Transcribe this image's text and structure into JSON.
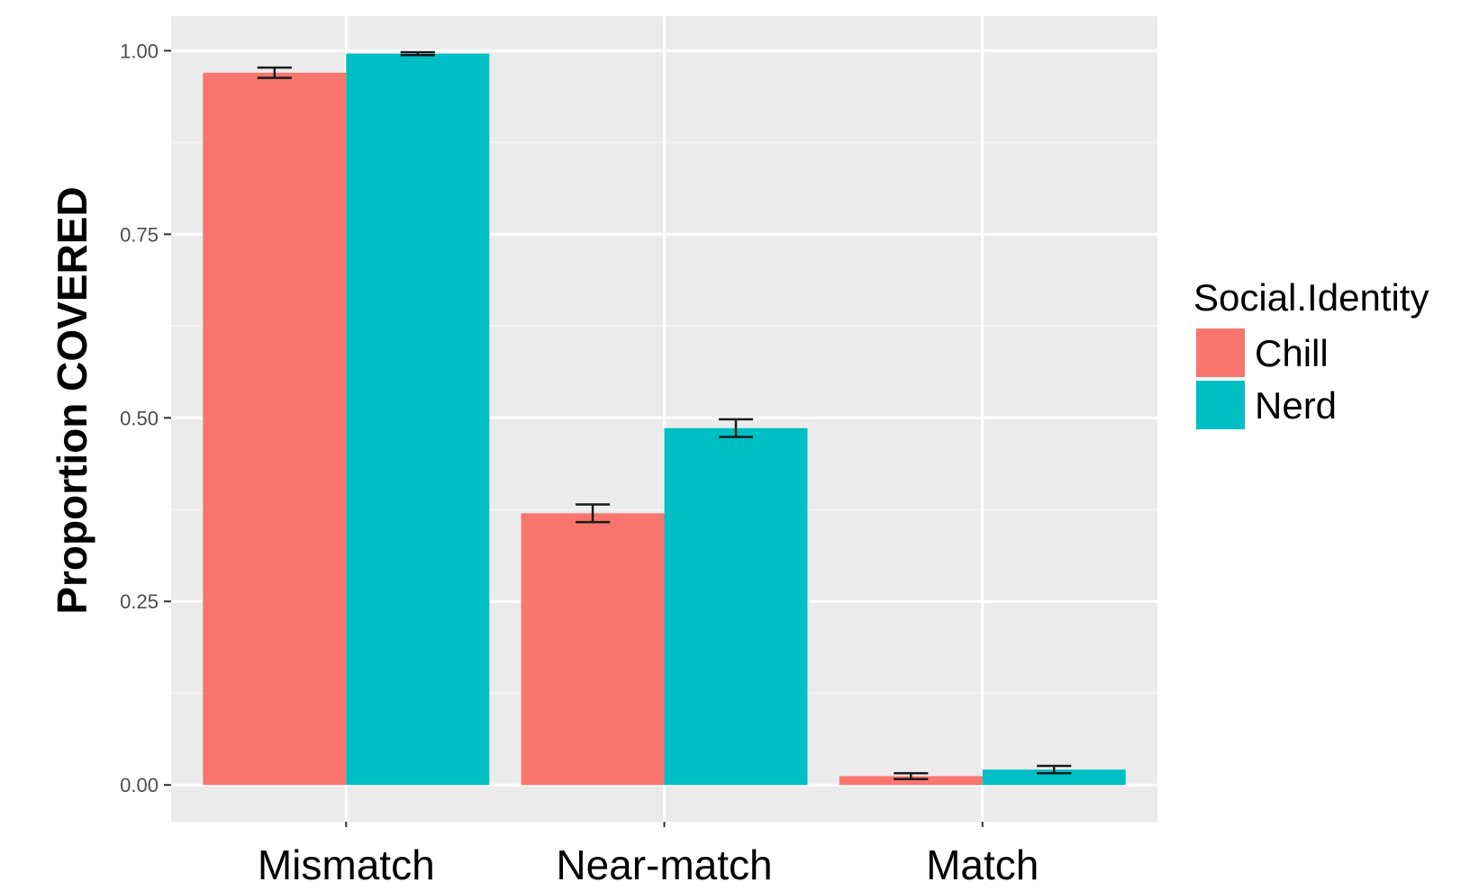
{
  "chart_data": {
    "type": "bar",
    "title": "",
    "xlabel": "",
    "ylabel": "Proportion COVERED",
    "categories": [
      "Mismatch",
      "Near-match",
      "Match"
    ],
    "series": [
      {
        "name": "Chill",
        "color": "#F8766D",
        "values": [
          0.97,
          0.37,
          0.012
        ],
        "error": [
          0.007,
          0.012,
          0.004
        ]
      },
      {
        "name": "Nerd",
        "color": "#00BFC4",
        "values": [
          0.996,
          0.486,
          0.021
        ],
        "error": [
          0.002,
          0.012,
          0.005
        ]
      }
    ],
    "yticks": [
      "0.00",
      "0.25",
      "0.50",
      "0.75",
      "1.00"
    ],
    "ylim": [
      -0.05,
      1.047
    ],
    "grid": true,
    "panel_background": "#EBEBEB",
    "legend": {
      "title": "Social.Identity",
      "position": "right"
    }
  }
}
